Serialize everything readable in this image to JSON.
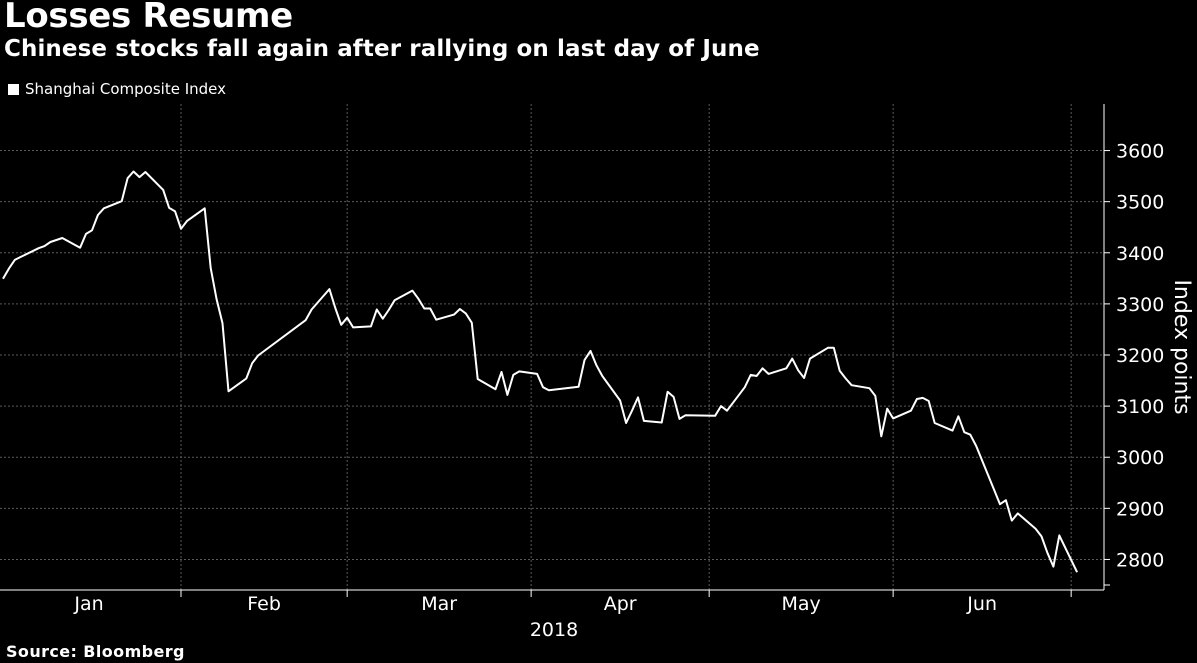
{
  "header": {
    "title": "Losses Resume",
    "subtitle": "Chinese stocks fall again after rallying on last day of June"
  },
  "legend": {
    "label": "Shanghai Composite Index",
    "color": "#ffffff"
  },
  "footer": {
    "source": "Source: Bloomberg"
  },
  "colors": {
    "background": "#000000",
    "line": "#ffffff",
    "grid": "#5a5a5a",
    "text": "#ffffff"
  },
  "chart_data": {
    "type": "line",
    "title": "Losses Resume",
    "subtitle": "Chinese stocks fall again after rallying on last day of June",
    "xlabel": "2018",
    "ylabel": "Index points",
    "ylim": [
      2700,
      3650
    ],
    "yticks": [
      2800,
      2900,
      3000,
      3100,
      3200,
      3300,
      3400,
      3500,
      3600
    ],
    "ytick_labels": [
      "2800",
      "2900",
      "3000",
      "3100",
      "3200",
      "3300",
      "3400",
      "3500",
      "3600"
    ],
    "x_months": [
      "Jan",
      "Feb",
      "Mar",
      "Apr",
      "May",
      "Jun"
    ],
    "x_year_label": "2018",
    "x_range": [
      "2018-01-02",
      "2018-07-03"
    ],
    "grid": true,
    "legend_position": "top-left",
    "series": [
      {
        "name": "Shanghai Composite Index",
        "x": [
          "2018-01-02",
          "2018-01-03",
          "2018-01-04",
          "2018-01-05",
          "2018-01-08",
          "2018-01-09",
          "2018-01-10",
          "2018-01-11",
          "2018-01-12",
          "2018-01-15",
          "2018-01-16",
          "2018-01-17",
          "2018-01-18",
          "2018-01-19",
          "2018-01-22",
          "2018-01-23",
          "2018-01-24",
          "2018-01-25",
          "2018-01-26",
          "2018-01-29",
          "2018-01-30",
          "2018-01-31",
          "2018-02-01",
          "2018-02-02",
          "2018-02-05",
          "2018-02-06",
          "2018-02-07",
          "2018-02-08",
          "2018-02-09",
          "2018-02-12",
          "2018-02-13",
          "2018-02-14",
          "2018-02-22",
          "2018-02-23",
          "2018-02-26",
          "2018-02-27",
          "2018-02-28",
          "2018-03-01",
          "2018-03-02",
          "2018-03-05",
          "2018-03-06",
          "2018-03-07",
          "2018-03-08",
          "2018-03-09",
          "2018-03-12",
          "2018-03-13",
          "2018-03-14",
          "2018-03-15",
          "2018-03-16",
          "2018-03-19",
          "2018-03-20",
          "2018-03-21",
          "2018-03-22",
          "2018-03-23",
          "2018-03-26",
          "2018-03-27",
          "2018-03-28",
          "2018-03-29",
          "2018-03-30",
          "2018-04-02",
          "2018-04-03",
          "2018-04-04",
          "2018-04-09",
          "2018-04-10",
          "2018-04-11",
          "2018-04-12",
          "2018-04-13",
          "2018-04-16",
          "2018-04-17",
          "2018-04-18",
          "2018-04-19",
          "2018-04-20",
          "2018-04-23",
          "2018-04-24",
          "2018-04-25",
          "2018-04-26",
          "2018-04-27",
          "2018-05-02",
          "2018-05-03",
          "2018-05-04",
          "2018-05-07",
          "2018-05-08",
          "2018-05-09",
          "2018-05-10",
          "2018-05-11",
          "2018-05-14",
          "2018-05-15",
          "2018-05-16",
          "2018-05-17",
          "2018-05-18",
          "2018-05-21",
          "2018-05-22",
          "2018-05-23",
          "2018-05-24",
          "2018-05-25",
          "2018-05-28",
          "2018-05-29",
          "2018-05-30",
          "2018-05-31",
          "2018-06-01",
          "2018-06-04",
          "2018-06-05",
          "2018-06-06",
          "2018-06-07",
          "2018-06-08",
          "2018-06-11",
          "2018-06-12",
          "2018-06-13",
          "2018-06-14",
          "2018-06-15",
          "2018-06-19",
          "2018-06-20",
          "2018-06-21",
          "2018-06-22",
          "2018-06-25",
          "2018-06-26",
          "2018-06-27",
          "2018-06-28",
          "2018-06-29",
          "2018-07-02"
        ],
        "values": [
          3349,
          3369,
          3386,
          3392,
          3409,
          3413,
          3421,
          3425,
          3429,
          3410,
          3437,
          3444,
          3474,
          3487,
          3501,
          3546,
          3559,
          3548,
          3558,
          3523,
          3488,
          3481,
          3447,
          3462,
          3487,
          3370,
          3309,
          3262,
          3129,
          3154,
          3184,
          3199,
          3268,
          3289,
          3329,
          3292,
          3259,
          3273,
          3254,
          3256,
          3289,
          3271,
          3288,
          3307,
          3326,
          3310,
          3291,
          3291,
          3269,
          3279,
          3290,
          3281,
          3263,
          3153,
          3133,
          3167,
          3122,
          3161,
          3168,
          3163,
          3137,
          3131,
          3138,
          3190,
          3208,
          3180,
          3159,
          3111,
          3067,
          3091,
          3117,
          3071,
          3068,
          3128,
          3118,
          3075,
          3082,
          3081,
          3100,
          3091,
          3137,
          3161,
          3159,
          3174,
          3163,
          3174,
          3193,
          3170,
          3155,
          3193,
          3214,
          3214,
          3169,
          3154,
          3141,
          3135,
          3120,
          3041,
          3095,
          3076,
          3091,
          3114,
          3116,
          3110,
          3067,
          3052,
          3080,
          3049,
          3044,
          3022,
          2908,
          2916,
          2876,
          2890,
          2860,
          2845,
          2813,
          2786,
          2847,
          2775
        ]
      }
    ]
  }
}
